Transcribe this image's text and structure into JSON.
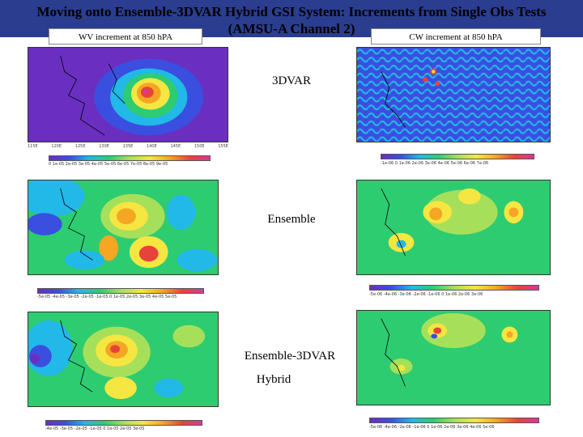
{
  "slide": {
    "title_line1": "Moving onto Ensemble-3DVAR Hybrid GSI System: Increments from Single Obs Tests",
    "title_line2": "(AMSU-A Channel 2)",
    "left_header": "WV increment at 850 hPA",
    "right_header": "CW increment at 850 hPA",
    "label_3dvar": "3DVAR",
    "label_ensemble": "Ensemble",
    "label_hybrid_1": "Ensemble-3DVAR",
    "label_hybrid_2": "Hybrid"
  },
  "colors": {
    "title_bg": "#2a3d8f",
    "purple": "#6a2fc0",
    "blue": "#3a4fe0",
    "cyan": "#22b8e8",
    "green": "#2ecc71",
    "lightgreen": "#a6e05a",
    "yellow": "#f5e642",
    "orange": "#f5a623",
    "red": "#e8433a",
    "magenta": "#d63a9a"
  },
  "colorbars": {
    "top_left": "0   1e-05  2e-05  3e-05  4e-05  5e-05  6e-05  7e-05  8e-05  9e-05",
    "top_right": "-1e-06  0  1e-06  2e-06  3e-06  4e-06  5e-06  6e-06  7e-06",
    "mid_left": "-5e-05 -4e-05 -3e-05 -2e-05 -1e-05 0 1e-05 2e-05 3e-05 4e-05 5e-05",
    "mid_right": "-5e-06 -4e-06 -3e-06 -2e-06 -1e-06 0 1e-06 2e-06 3e-06",
    "bot_left": "-4e-05  -3e-05  -2e-05  -1e-05  0  1e-05  2e-05  3e-05",
    "bot_right": "-5e-06 -4e-06 -2e-06 -1e-06 0 1e-06 2e-06 3e-06 4e-06 5e-06"
  },
  "axis": {
    "x_ticks": [
      "115E",
      "120E",
      "125E",
      "130E",
      "135E",
      "140E",
      "145E",
      "150E",
      "155E"
    ]
  }
}
